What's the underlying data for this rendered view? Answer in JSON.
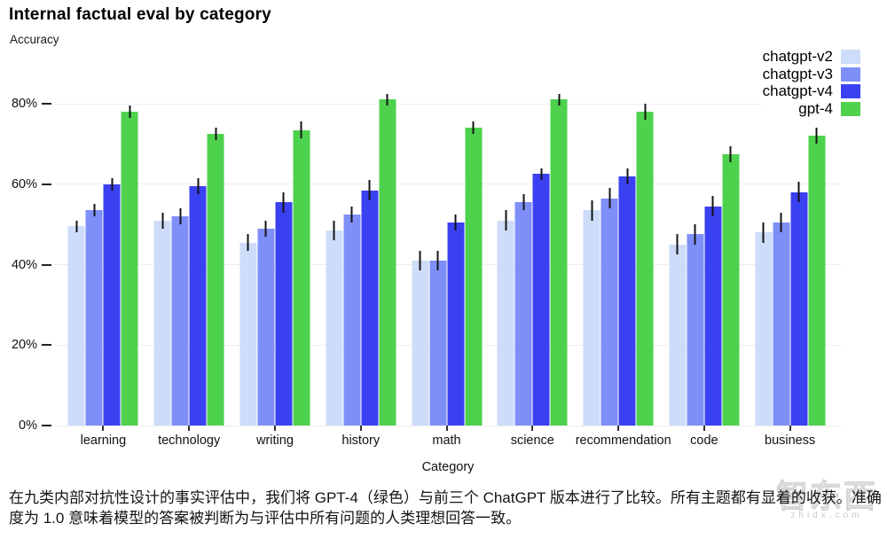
{
  "title": "Internal factual eval by category",
  "subtitle": "Accuracy",
  "caption": "在九类内部对抗性设计的事实评估中，我们将 GPT-4（绿色）与前三个 ChatGPT 版本进行了比较。所有主题都有显着的收获。准确度为 1.0 意味着模型的答案被判断为与评估中所有问题的人类理想回答一致。",
  "watermark": {
    "text": "智东西",
    "domain": "zhidx.com"
  },
  "chart_data": {
    "type": "bar",
    "title": "Internal factual eval by category",
    "ylabel": "Accuracy",
    "xlabel": "Category",
    "ylim": [
      0,
      85
    ],
    "grid": "horizontal",
    "legend_position": "top-right",
    "yticks": [
      {
        "value": 0,
        "label": "0%"
      },
      {
        "value": 20,
        "label": "20%"
      },
      {
        "value": 40,
        "label": "40%"
      },
      {
        "value": 60,
        "label": "60%"
      },
      {
        "value": 80,
        "label": "80%"
      }
    ],
    "categories": [
      "learning",
      "technology",
      "writing",
      "history",
      "math",
      "science",
      "recommendation",
      "code",
      "business"
    ],
    "series": [
      {
        "name": "chatgpt-v2",
        "color": "#cddcf9",
        "values": [
          49.5,
          51,
          45.5,
          48.5,
          41,
          51,
          53.5,
          45,
          48
        ],
        "errors": [
          1.5,
          2,
          2,
          2.5,
          2.5,
          2.5,
          2.5,
          2.5,
          2.5
        ]
      },
      {
        "name": "chatgpt-v3",
        "color": "#7e8ff8",
        "values": [
          53.5,
          52,
          49,
          52.5,
          41,
          55.5,
          56.5,
          47.5,
          50.5
        ],
        "errors": [
          1.5,
          2,
          2,
          2,
          2.5,
          2,
          2.5,
          2.5,
          2.5
        ]
      },
      {
        "name": "chatgpt-v4",
        "color": "#3a41f1",
        "values": [
          60,
          59.5,
          55.5,
          58.5,
          50.5,
          62.5,
          62,
          54.5,
          58
        ],
        "errors": [
          1.5,
          2,
          2.5,
          2.5,
          2,
          1.5,
          2,
          2.5,
          2.5
        ]
      },
      {
        "name": "gpt-4",
        "color": "#4ed24e",
        "values": [
          78,
          72.5,
          73.5,
          81,
          74,
          81,
          78,
          67.5,
          72
        ],
        "errors": [
          1.5,
          1.5,
          2,
          1.5,
          1.5,
          1.5,
          2,
          2,
          2
        ]
      }
    ]
  }
}
